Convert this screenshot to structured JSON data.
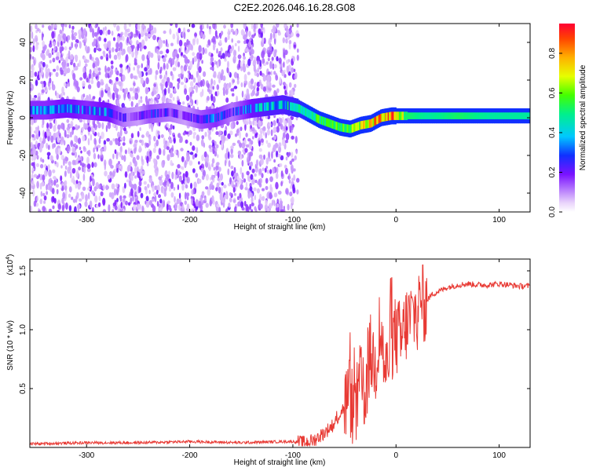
{
  "title": "C2E2.2026.046.16.28.G08",
  "colors": {
    "snr_line": "#e83a34",
    "axis": "#000000"
  },
  "chart_data": [
    {
      "type": "heatmap",
      "xlabel": "Height of straight line (km)",
      "ylabel": "Frequency (Hz)",
      "xlim": [
        -355,
        130
      ],
      "ylim": [
        -50,
        50
      ],
      "x_ticks": [
        -300,
        -200,
        -100,
        0,
        100
      ],
      "x_tick_labels": [
        "-300",
        "-200",
        "-100",
        "0",
        "100"
      ],
      "y_ticks": [
        -40,
        -20,
        0,
        20,
        40
      ],
      "y_tick_labels": [
        "-40",
        "-20",
        "0",
        "20",
        "40"
      ],
      "colorbar": {
        "label": "Normalized spectral amplitude",
        "range": [
          0,
          0.95
        ],
        "ticks": [
          0.0,
          0.2,
          0.4,
          0.6,
          0.8
        ],
        "tick_labels": [
          "0.0",
          "0.2",
          "0.4",
          "0.6",
          "0.8"
        ],
        "colormap": "rainbow"
      },
      "noise_region_x": [
        -355,
        -95
      ],
      "signal_track": {
        "x": [
          -340,
          -320,
          -300,
          -280,
          -265,
          -250,
          -240,
          -220,
          -205,
          -190,
          -175,
          -160,
          -140,
          -125,
          -110,
          -95,
          -85,
          -75,
          -65,
          -55,
          -45,
          -35,
          -25,
          -15,
          -5,
          0,
          10,
          30,
          60,
          90,
          130
        ],
        "y": [
          4,
          5,
          4,
          3,
          0,
          1,
          2,
          3,
          1,
          -1,
          0,
          3,
          5,
          6,
          7,
          5,
          2,
          -1,
          -3,
          -5,
          -6,
          -4,
          -3,
          0,
          1,
          1,
          1,
          1,
          1,
          1,
          1
        ],
        "amplitude": [
          0.3,
          0.35,
          0.3,
          0.35,
          0.2,
          0.15,
          0.25,
          0.2,
          0.15,
          0.25,
          0.3,
          0.2,
          0.35,
          0.4,
          0.4,
          0.45,
          0.5,
          0.55,
          0.6,
          0.6,
          0.65,
          0.7,
          0.75,
          0.8,
          0.85,
          0.8,
          0.55,
          0.5,
          0.55,
          0.5,
          0.5
        ]
      }
    },
    {
      "type": "line",
      "xlabel": "Height of straight line (km)",
      "ylabel": "SNR (10 * v/v)",
      "y_multiplier_label": "(x10",
      "y_multiplier_exp": "4",
      "y_multiplier_close": ")",
      "xlim": [
        -355,
        130
      ],
      "ylim": [
        0.0,
        1.6
      ],
      "x_ticks": [
        -300,
        -200,
        -100,
        0,
        100
      ],
      "x_tick_labels": [
        "-300",
        "-200",
        "-100",
        "0",
        "100"
      ],
      "y_ticks": [
        0.5,
        1.0,
        1.5
      ],
      "y_tick_labels": [
        "0.5",
        "1.0",
        "1.5"
      ],
      "series": [
        {
          "x": [
            -355,
            -300,
            -250,
            -200,
            -150,
            -110,
            -100,
            -90,
            -80,
            -70,
            -60,
            -50,
            -45,
            -40,
            -35,
            -30,
            -25,
            -20,
            -15,
            -10,
            -5,
            0,
            5,
            10,
            15,
            20,
            25,
            30,
            35,
            40,
            50,
            60,
            70,
            80,
            90,
            100,
            110,
            120,
            130
          ],
          "y": [
            0.03,
            0.04,
            0.04,
            0.05,
            0.04,
            0.05,
            0.05,
            0.04,
            0.06,
            0.12,
            0.2,
            0.35,
            0.45,
            0.25,
            0.55,
            0.45,
            0.8,
            0.7,
            1.0,
            0.6,
            0.9,
            0.95,
            0.9,
            1.05,
            1.1,
            1.15,
            1.2,
            1.25,
            1.3,
            1.32,
            1.36,
            1.38,
            1.39,
            1.38,
            1.38,
            1.39,
            1.38,
            1.37,
            1.37
          ]
        }
      ]
    }
  ]
}
